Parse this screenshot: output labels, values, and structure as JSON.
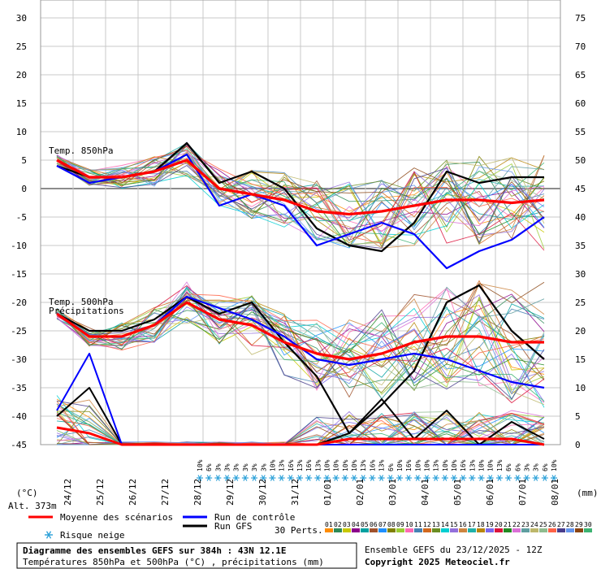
{
  "chart_data": {
    "type": "line",
    "title": "Diagramme des ensembles GEFS sur 384h : 43N 12.1E",
    "subtitle": "Températures 850hPa et 500hPa (°C) , précipitations (mm)",
    "run_info": "Ensemble GEFS du 23/12/2025 - 12Z",
    "copyright": "Copyright 2025 Meteociel.fr",
    "left_axis_label": "(°C)",
    "right_axis_label": "(mm)",
    "altitude": "Alt. 373m",
    "left_ticks": [
      "30",
      "25",
      "20",
      "15",
      "10",
      "5",
      "0",
      "-5",
      "-10",
      "-15",
      "-20",
      "-25",
      "-30",
      "-35",
      "-40",
      "-45"
    ],
    "right_ticks": [
      "75",
      "70",
      "65",
      "60",
      "55",
      "50",
      "45",
      "40",
      "35",
      "30",
      "25",
      "20",
      "15",
      "10",
      "5",
      "0"
    ],
    "dates": [
      "24/12",
      "25/12",
      "26/12",
      "27/12",
      "28/12",
      "29/12",
      "30/12",
      "31/12",
      "01/01",
      "02/01",
      "03/01",
      "04/01",
      "05/01",
      "06/01",
      "07/01",
      "08/01"
    ],
    "ylim": [
      -45,
      30
    ],
    "panel_labels": {
      "t850": "Temp. 850hPa",
      "t500": "Temp. 500hPa",
      "precip": "Précipitations"
    },
    "snow_risk_label": "Risque neige",
    "snow_risk_values": [
      "10%",
      "6%",
      "3%",
      "3%",
      "3%",
      "3%",
      "3%",
      "3%",
      "10%",
      "13%",
      "16%",
      "13%",
      "16%",
      "13%",
      "10%",
      "10%",
      "10%",
      "10%",
      "13%",
      "16%",
      "13%",
      "6%",
      "10%",
      "16%",
      "10%",
      "10%",
      "13%",
      "10%",
      "10%",
      "16%",
      "13%",
      "10%",
      "10%",
      "13%",
      "6%",
      "6%",
      "3%",
      "3%",
      "6%",
      "10%"
    ],
    "legend": {
      "mean": "Moyenne des scénarios",
      "control": "Run de contrôle",
      "gfs": "Run GFS",
      "perts_label": "30 Perts.",
      "pert_numbers": [
        "01",
        "02",
        "03",
        "04",
        "05",
        "06",
        "07",
        "08",
        "09",
        "10",
        "11",
        "12",
        "13",
        "14",
        "15",
        "16",
        "17",
        "18",
        "19",
        "20",
        "21",
        "22",
        "23",
        "24",
        "25",
        "26",
        "27",
        "28",
        "29",
        "30"
      ]
    },
    "colors": {
      "mean": "#ff0000",
      "control": "#0000ff",
      "gfs": "#000000",
      "perts": [
        "#ff8c00",
        "#2e8b57",
        "#c8c800",
        "#8b008b",
        "#00a0a0",
        "#a0522d",
        "#1e90ff",
        "#808000",
        "#9acd32",
        "#ff69b4",
        "#4682b4",
        "#d2691e",
        "#6b8e23",
        "#00ced1",
        "#9370db",
        "#cd853f",
        "#20b2aa",
        "#b8860b",
        "#7b68ee",
        "#dc143c",
        "#228b22",
        "#da70d6",
        "#5f9ea0",
        "#bdb76b",
        "#8fbc8f",
        "#ff6347",
        "#483d8b",
        "#6495ed",
        "#8b4513",
        "#3cb371"
      ]
    },
    "series": [
      {
        "key": "t850_mean",
        "values": [
          5,
          2,
          2,
          3,
          5,
          0,
          -1,
          -2,
          -4,
          -4.5,
          -4,
          -3,
          -2,
          -2,
          -2.5,
          -2
        ]
      },
      {
        "key": "t850_control",
        "values": [
          4,
          1,
          2,
          3,
          6,
          -3,
          -1,
          -3,
          -10,
          -8,
          -6,
          -8,
          -14,
          -11,
          -9,
          -5
        ]
      },
      {
        "key": "t850_gfs",
        "values": [
          4,
          2,
          2,
          3,
          8,
          1,
          3,
          0,
          -7,
          -10,
          -11,
          -6,
          3,
          1,
          2,
          2
        ]
      },
      {
        "key": "t500_mean",
        "values": [
          -22,
          -26,
          -26,
          -24,
          -20,
          -23,
          -24,
          -27,
          -29,
          -30,
          -29,
          -27,
          -26,
          -26,
          -27,
          -27
        ]
      },
      {
        "key": "t500_control",
        "values": [
          -22,
          -26,
          -26,
          -24,
          -19,
          -21,
          -23,
          -26,
          -30,
          -31,
          -30,
          -29,
          -30,
          -32,
          -34,
          -35
        ]
      },
      {
        "key": "t500_gfs",
        "values": [
          -22,
          -25,
          -25,
          -23,
          -19,
          -22,
          -20,
          -27,
          -33,
          -43,
          -38,
          -32,
          -20,
          -17,
          -25,
          -30
        ]
      },
      {
        "key": "precip_mean",
        "values": [
          3,
          2,
          0,
          0,
          0,
          0,
          0,
          0,
          0,
          1,
          1,
          1,
          1,
          1,
          1,
          0
        ]
      },
      {
        "key": "precip_control",
        "values": [
          6,
          16,
          0,
          0,
          0,
          0,
          0,
          0,
          0,
          0,
          0,
          0,
          0,
          0,
          0,
          0
        ]
      },
      {
        "key": "precip_gfs",
        "values": [
          5,
          10,
          0,
          0,
          0,
          0,
          0,
          0,
          0,
          2,
          8,
          1,
          6,
          0,
          4,
          1
        ]
      }
    ]
  }
}
